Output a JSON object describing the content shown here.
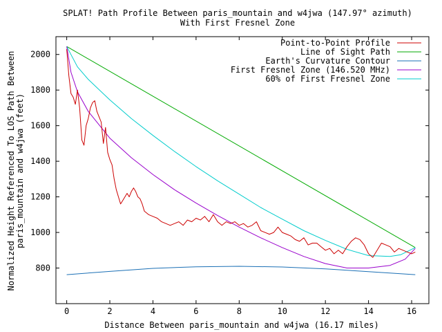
{
  "chart_data": {
    "type": "line",
    "title": "SPLAT! Path Profile Between paris_mountain and w4jwa (147.97° azimuth)",
    "subtitle": "With First Fresnel Zone",
    "xlabel": "Distance Between paris_mountain and w4jwa (16.17 miles)",
    "ylabel_lines": [
      "Normalized Height Referenced To LOS Path Between",
      "paris_mountain and w4jwa (feet)"
    ],
    "xlim": [
      -0.5,
      16.8
    ],
    "ylim": [
      600,
      2100
    ],
    "x_ticks": [
      0,
      2,
      4,
      6,
      8,
      10,
      12,
      14,
      16
    ],
    "y_ticks": [
      800,
      1000,
      1200,
      1400,
      1600,
      1800,
      2000
    ],
    "grid": false,
    "legend_position": "top-right",
    "series": [
      {
        "name": "Point-to-Point Profile",
        "color": "#cc0000",
        "x": [
          0,
          0.1,
          0.2,
          0.3,
          0.4,
          0.5,
          0.6,
          0.7,
          0.8,
          0.9,
          1.0,
          1.1,
          1.2,
          1.3,
          1.4,
          1.5,
          1.6,
          1.7,
          1.8,
          1.9,
          2.0,
          2.1,
          2.2,
          2.3,
          2.4,
          2.5,
          2.6,
          2.7,
          2.8,
          2.9,
          3.0,
          3.1,
          3.2,
          3.3,
          3.4,
          3.5,
          3.6,
          3.8,
          4.0,
          4.2,
          4.4,
          4.6,
          4.8,
          5.0,
          5.2,
          5.4,
          5.6,
          5.8,
          6.0,
          6.2,
          6.4,
          6.6,
          6.8,
          7.0,
          7.2,
          7.4,
          7.6,
          7.8,
          8.0,
          8.2,
          8.4,
          8.6,
          8.8,
          9.0,
          9.2,
          9.4,
          9.6,
          9.8,
          10.0,
          10.2,
          10.4,
          10.6,
          10.8,
          11.0,
          11.2,
          11.4,
          11.6,
          11.8,
          12.0,
          12.2,
          12.4,
          12.6,
          12.8,
          13.0,
          13.2,
          13.4,
          13.6,
          13.8,
          14.0,
          14.2,
          14.4,
          14.6,
          14.8,
          15.0,
          15.2,
          15.4,
          15.6,
          15.8,
          16.0,
          16.17
        ],
        "values": [
          2030,
          1880,
          1780,
          1760,
          1720,
          1800,
          1700,
          1520,
          1490,
          1600,
          1640,
          1700,
          1730,
          1740,
          1680,
          1650,
          1620,
          1500,
          1590,
          1450,
          1410,
          1380,
          1300,
          1240,
          1200,
          1160,
          1180,
          1200,
          1220,
          1200,
          1230,
          1250,
          1230,
          1200,
          1190,
          1160,
          1120,
          1100,
          1090,
          1080,
          1060,
          1050,
          1040,
          1050,
          1060,
          1040,
          1070,
          1060,
          1080,
          1070,
          1090,
          1060,
          1100,
          1060,
          1040,
          1060,
          1050,
          1060,
          1040,
          1050,
          1030,
          1040,
          1060,
          1010,
          1000,
          990,
          1000,
          1030,
          1000,
          990,
          980,
          960,
          950,
          970,
          930,
          940,
          940,
          920,
          900,
          910,
          880,
          900,
          880,
          920,
          950,
          970,
          960,
          930,
          880,
          860,
          900,
          940,
          930,
          920,
          890,
          910,
          900,
          890,
          880,
          890
        ]
      },
      {
        "name": "Line of Sight Path",
        "color": "#00aa00",
        "x": [
          0,
          16.17
        ],
        "values": [
          2045,
          915
        ]
      },
      {
        "name": "Earth's Curvature Contour",
        "color": "#1a6fb5",
        "x": [
          0,
          2,
          4,
          6,
          8,
          10,
          12,
          14,
          16.17
        ],
        "values": [
          763,
          781,
          798,
          807,
          810,
          806,
          795,
          780,
          763
        ]
      },
      {
        "name": "First Fresnel Zone (146.520 MHz)",
        "color": "#9900cc",
        "x": [
          0,
          0.2,
          0.5,
          1,
          2,
          3,
          4,
          5,
          6,
          7,
          8,
          9,
          10,
          11,
          12,
          13,
          14,
          15,
          15.7,
          16.17
        ],
        "values": [
          2045,
          1900,
          1790,
          1680,
          1530,
          1420,
          1325,
          1240,
          1165,
          1095,
          1030,
          970,
          915,
          865,
          825,
          800,
          800,
          815,
          850,
          910
        ]
      },
      {
        "name": "60% of First Fresnel Zone",
        "color": "#00cccc",
        "x": [
          0,
          0.5,
          1,
          2,
          3,
          4,
          5,
          6,
          7,
          8,
          9,
          10,
          11,
          12,
          13,
          14,
          15,
          15.5,
          16.17
        ],
        "values": [
          2045,
          1930,
          1860,
          1745,
          1640,
          1545,
          1455,
          1370,
          1290,
          1215,
          1140,
          1075,
          1010,
          955,
          905,
          870,
          865,
          875,
          915
        ]
      }
    ]
  }
}
